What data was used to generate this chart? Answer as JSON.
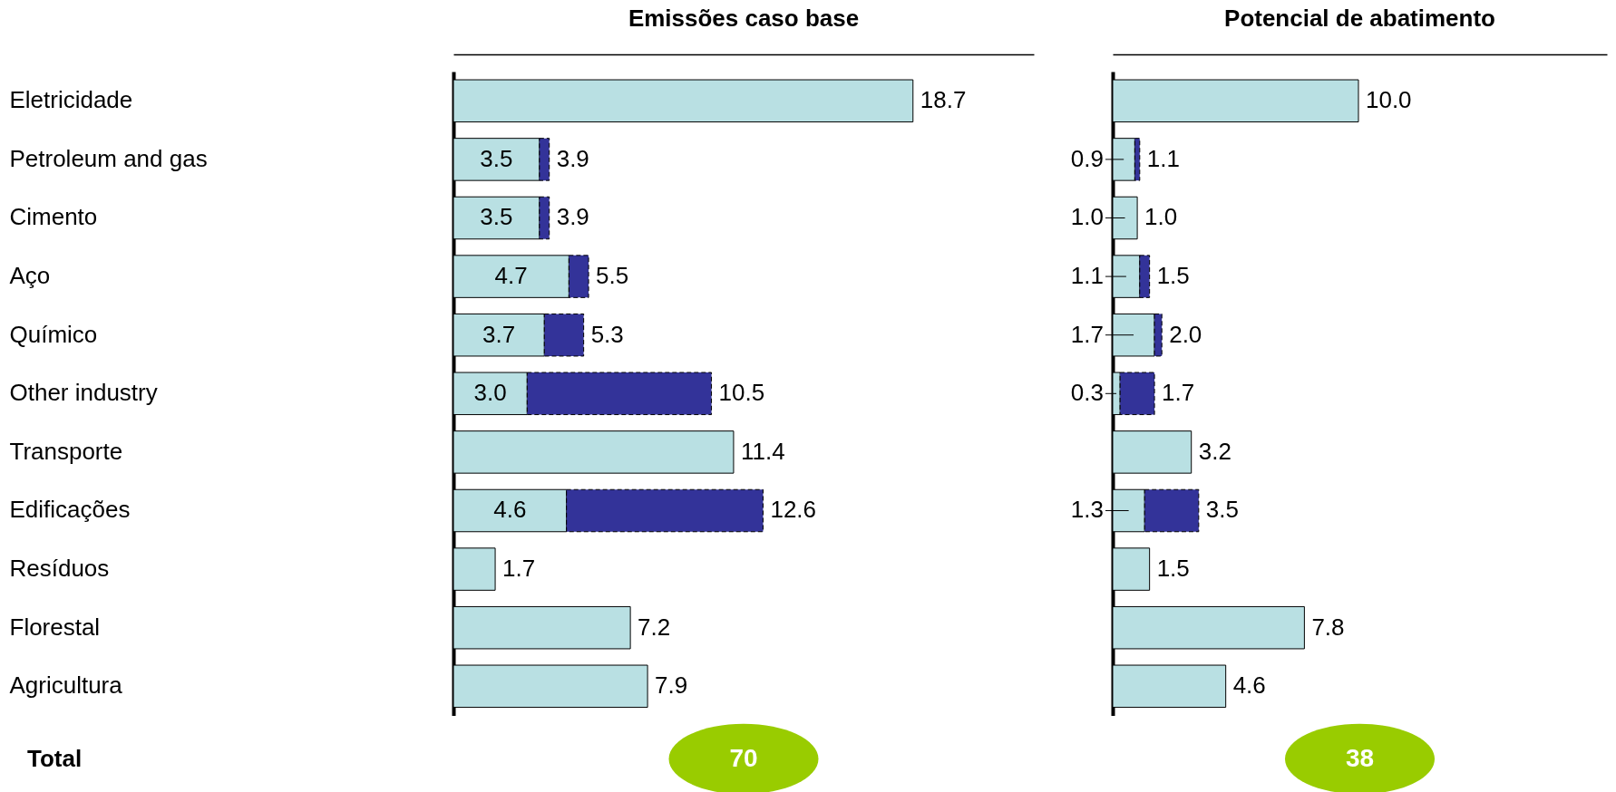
{
  "chart_data": [
    {
      "type": "bar",
      "orientation": "horizontal",
      "stacked": true,
      "title": "Emissões caso base",
      "tick_labels": "y",
      "categories": [
        "Eletricidade",
        "Petroleum and gas",
        "Cimento",
        "Aço",
        "Químico",
        "Other industry",
        "Transporte",
        "Edificações",
        "Resíduos",
        "Florestal",
        "Agricultura"
      ],
      "series": [
        {
          "color": "#b9e0e3",
          "values": [
            18.7,
            3.5,
            3.5,
            4.7,
            3.7,
            3.0,
            11.4,
            4.6,
            1.7,
            7.2,
            7.9
          ],
          "value_labels": [
            null,
            "3.5",
            "3.5",
            "4.7",
            "3.7",
            "3.0",
            null,
            "4.6",
            null,
            null,
            null
          ]
        },
        {
          "color": "#333399",
          "line_style": "dashed",
          "values": [
            null,
            0.4,
            0.4,
            0.8,
            1.6,
            7.5,
            null,
            8.0,
            null,
            null,
            null
          ]
        }
      ],
      "totals": [
        "18.7",
        "3.9",
        "3.9",
        "5.5",
        "5.3",
        "10.5",
        "11.4",
        "12.6",
        "1.7",
        "7.2",
        "7.9"
      ],
      "annotations": [
        "Total",
        "70"
      ]
    },
    {
      "type": "bar",
      "orientation": "horizontal",
      "stacked": true,
      "title": "Potencial de abatimento",
      "tick_labels": false,
      "categories": [
        null,
        null,
        null,
        null,
        null,
        null,
        null,
        null,
        null,
        null,
        null
      ],
      "series": [
        {
          "color": "#b9e0e3",
          "values": [
            10.0,
            0.9,
            1.0,
            1.1,
            1.7,
            0.3,
            3.2,
            1.3,
            1.5,
            7.8,
            4.6
          ],
          "value_labels": [
            null,
            "0.9",
            "1.0",
            "1.1",
            "1.7",
            "0.3",
            null,
            "1.3",
            null,
            null,
            null
          ]
        },
        {
          "color": "#333399",
          "line_style": "dashed",
          "values": [
            null,
            0.2,
            null,
            0.4,
            0.3,
            1.4,
            null,
            2.2,
            null,
            null,
            null
          ]
        }
      ],
      "totals": [
        "10.0",
        "1.1",
        "1.0",
        "1.5",
        "2.0",
        "1.7",
        "3.2",
        "3.5",
        "1.5",
        "7.8",
        "4.6"
      ],
      "annotations": [
        "38"
      ]
    }
  ]
}
